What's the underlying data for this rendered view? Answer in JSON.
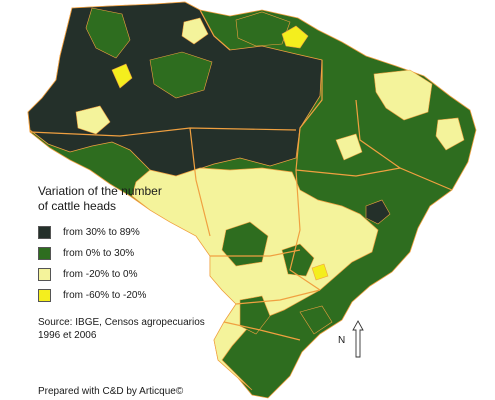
{
  "legend": {
    "title_line1": "Variation of the number",
    "title_line2": "of cattle heads",
    "items": [
      {
        "label": "from 30% to 89%",
        "color": "#24302a"
      },
      {
        "label": "from 0% to 30%",
        "color": "#2e6d1f"
      },
      {
        "label": "from -20% to 0%",
        "color": "#f4f39b"
      },
      {
        "label": "from -60% to -20%",
        "color": "#f4ee1e"
      }
    ]
  },
  "source": {
    "line1": "Source: IBGE, Censos agropecuarios",
    "line2": "1996 et 2006"
  },
  "credit": "Prepared with C&D by Articque©",
  "north_label": "N",
  "colors": {
    "border": "#f0a040"
  }
}
